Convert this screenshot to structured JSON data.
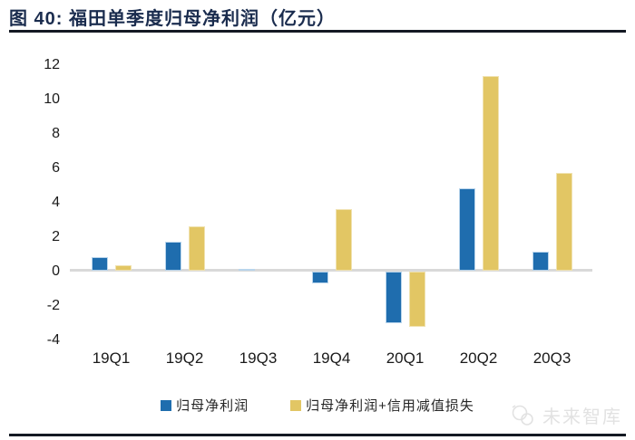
{
  "header": {
    "title": "图 40: 福田单季度归母净利润（亿元）"
  },
  "chart_data": {
    "type": "bar",
    "title": "福田单季度归母净利润（亿元）",
    "categories": [
      "19Q1",
      "19Q2",
      "19Q3",
      "19Q4",
      "20Q1",
      "20Q2",
      "20Q3"
    ],
    "series": [
      {
        "name": "归母净利润",
        "color": "#1f6dae",
        "values": [
          0.8,
          1.7,
          0.1,
          -0.7,
          -3.0,
          4.8,
          1.1
        ]
      },
      {
        "name": "归母净利润+信用减值损失",
        "color": "#e2c664",
        "values": [
          0.3,
          2.6,
          0,
          3.6,
          -3.2,
          11.3,
          5.7
        ]
      }
    ],
    "xlabel": "",
    "ylabel": "",
    "ylim": [
      -4,
      12
    ],
    "yticks": [
      12,
      10,
      8,
      6,
      4,
      2,
      0,
      -2,
      -4
    ],
    "grid": false,
    "legend_position": "bottom",
    "axis_line_color": "#d9d9d9"
  },
  "watermark": {
    "text": "未来智库"
  },
  "colors": {
    "title_text": "#1a2c4e",
    "rule": "#141923",
    "bar_blue": "#1f6dae",
    "bar_yellow": "#e2c664"
  }
}
